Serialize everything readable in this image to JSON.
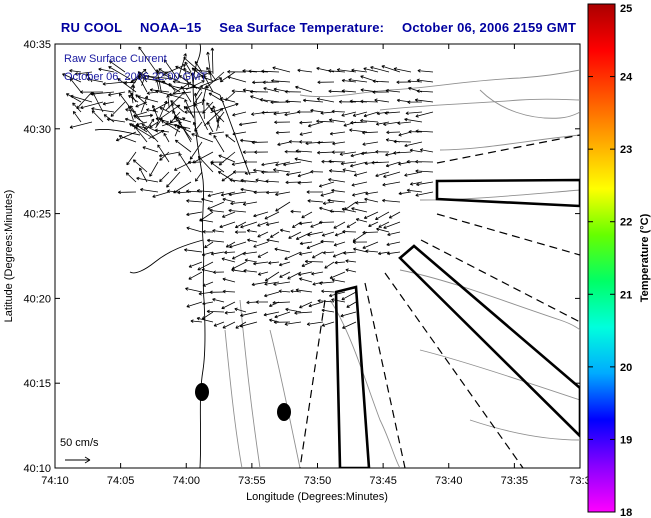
{
  "title": {
    "parts": [
      "RU COOL",
      "NOAA–15",
      "Sea Surface Temperature:",
      "October 06, 2006 2159 GMT"
    ]
  },
  "inset": {
    "line1": "Raw Surface Current",
    "line2": "October 06, 2006 22:00 GMT"
  },
  "scale_label": "50 cm/s",
  "axes": {
    "xlabel": "Longitude (Degrees:Minutes)",
    "ylabel": "Latitude (Degrees:Minutes)",
    "xticks": [
      "74:10",
      "74:05",
      "74:00",
      "73:55",
      "73:50",
      "73:45",
      "73:40",
      "73:35",
      "73:3"
    ],
    "yticks": [
      "40:35",
      "40:30",
      "40:25",
      "40:20",
      "40:15",
      "40:10"
    ]
  },
  "colorbar": {
    "label": "Temperature (°C)",
    "ticks": [
      "25",
      "24",
      "23",
      "22",
      "21",
      "20",
      "19",
      "18"
    ],
    "min": 18,
    "max": 25,
    "colors": [
      "#ff00ff",
      "#8800ff",
      "#0000ff",
      "#00aaff",
      "#00ffdd",
      "#00ff66",
      "#66ff00",
      "#ffff00",
      "#ffaa00",
      "#ff5500",
      "#ff0000",
      "#aa0000"
    ]
  }
}
